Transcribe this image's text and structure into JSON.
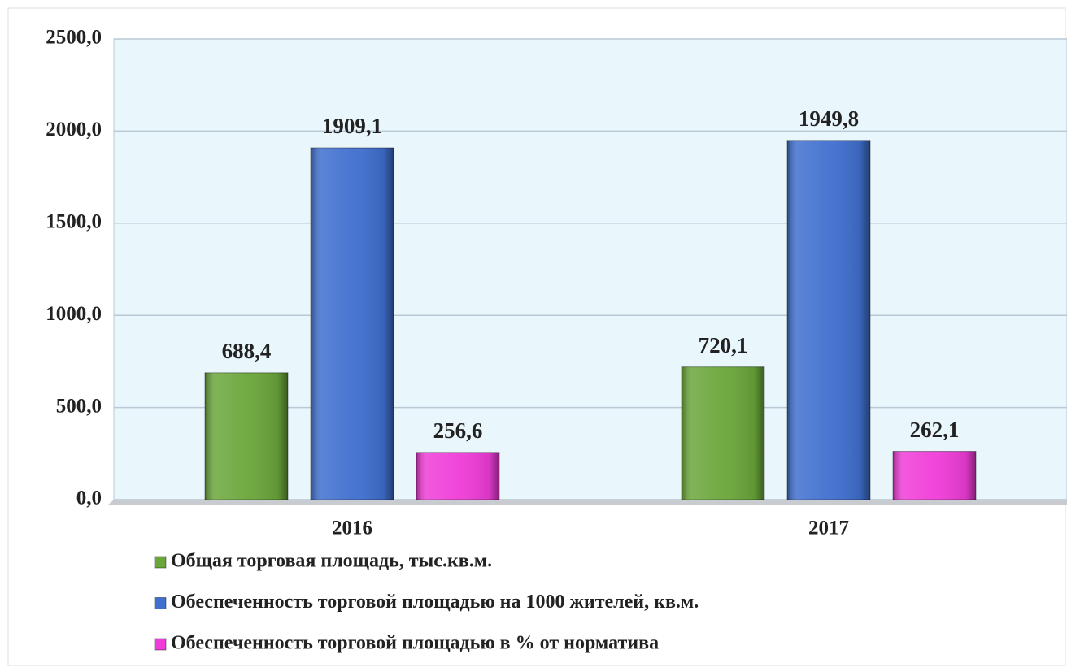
{
  "chart_data": {
    "type": "bar",
    "categories": [
      "2016",
      "2017"
    ],
    "series": [
      {
        "name": "Общая торговая площадь, тыс.кв.м.",
        "color": "#6aa63a",
        "values": [
          688.4,
          720.1
        ],
        "value_labels": [
          "688,4",
          "720,1"
        ]
      },
      {
        "name": "Обеспеченность торговой площадью на 1000 жителей, кв.м.",
        "color": "#3f6fcf",
        "values": [
          1909.1,
          1949.8
        ],
        "value_labels": [
          "1909,1",
          "1949,8"
        ]
      },
      {
        "name": "Обеспеченность торговой площадью в % от норматива",
        "color": "#f03cd8",
        "values": [
          256.6,
          262.1
        ],
        "value_labels": [
          "256,6",
          "262,1"
        ]
      }
    ],
    "ylim": [
      0,
      2500
    ],
    "yticks": [
      {
        "value": 0,
        "label": "0,0"
      },
      {
        "value": 500,
        "label": "500,0"
      },
      {
        "value": 1000,
        "label": "1000,0"
      },
      {
        "value": 1500,
        "label": "1500,0"
      },
      {
        "value": 2000,
        "label": "2000,0"
      },
      {
        "value": 2500,
        "label": "2500,0"
      }
    ],
    "grid": true
  }
}
